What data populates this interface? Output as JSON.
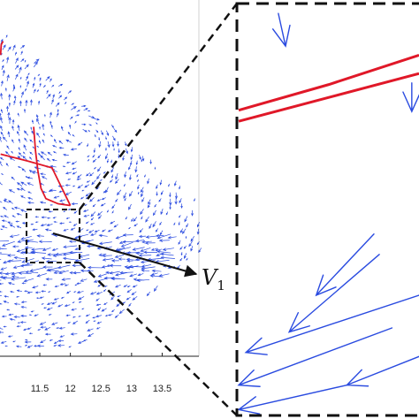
{
  "chart_data": {
    "type": "quiver",
    "xlabel": "",
    "ylabel": "",
    "title": "",
    "x_ticks": [
      "11.5",
      "12",
      "12.5",
      "13",
      "13.5"
    ],
    "x_tick_values": [
      11.5,
      12,
      12.5,
      13,
      13.5
    ],
    "xlim": [
      10.85,
      14.1
    ],
    "grid": false,
    "legend": "none",
    "annotation": {
      "base": "V",
      "sub": "1"
    },
    "zoom_inset": {
      "x_range": [
        11.7,
        12.2
      ],
      "style": "dashed",
      "connector": "dashed"
    },
    "colors": {
      "field": "#2a4be0",
      "trajectory": "#e01828",
      "annotation": "#111111"
    },
    "trajectories_main": [
      [
        [
          10.86,
          0.86
        ],
        [
          10.87,
          0.89
        ],
        [
          10.9,
          0.9
        ]
      ],
      [
        [
          11.4,
          0.65
        ],
        [
          11.43,
          0.58
        ],
        [
          11.47,
          0.52
        ],
        [
          11.52,
          0.47
        ],
        [
          11.6,
          0.44
        ],
        [
          11.8,
          0.425
        ],
        [
          12.0,
          0.42
        ]
      ],
      [
        [
          10.86,
          0.57
        ],
        [
          11.3,
          0.55
        ],
        [
          11.7,
          0.53
        ],
        [
          12.0,
          0.42
        ]
      ]
    ],
    "trajectories_inset": [
      [
        [
          0.0,
          0.72
        ],
        [
          0.5,
          0.59
        ],
        [
          1.0,
          0.46
        ]
      ],
      [
        [
          0.0,
          0.66
        ],
        [
          0.5,
          0.52
        ],
        [
          1.0,
          0.36
        ]
      ]
    ],
    "arrows_inset": [
      [
        [
          0.22,
          0.02
        ],
        [
          0.26,
          0.1
        ]
      ],
      [
        [
          0.96,
          0.19
        ],
        [
          0.96,
          0.26
        ]
      ],
      [
        [
          0.75,
          0.56
        ],
        [
          0.43,
          0.71
        ]
      ],
      [
        [
          0.78,
          0.61
        ],
        [
          0.28,
          0.8
        ]
      ],
      [
        [
          1.0,
          0.71
        ],
        [
          0.04,
          0.85
        ]
      ],
      [
        [
          0.85,
          0.79
        ],
        [
          0.0,
          0.93
        ]
      ],
      [
        [
          1.0,
          0.86
        ],
        [
          0.6,
          0.93
        ]
      ],
      [
        [
          0.6,
          0.93
        ],
        [
          0.0,
          0.99
        ]
      ]
    ]
  }
}
